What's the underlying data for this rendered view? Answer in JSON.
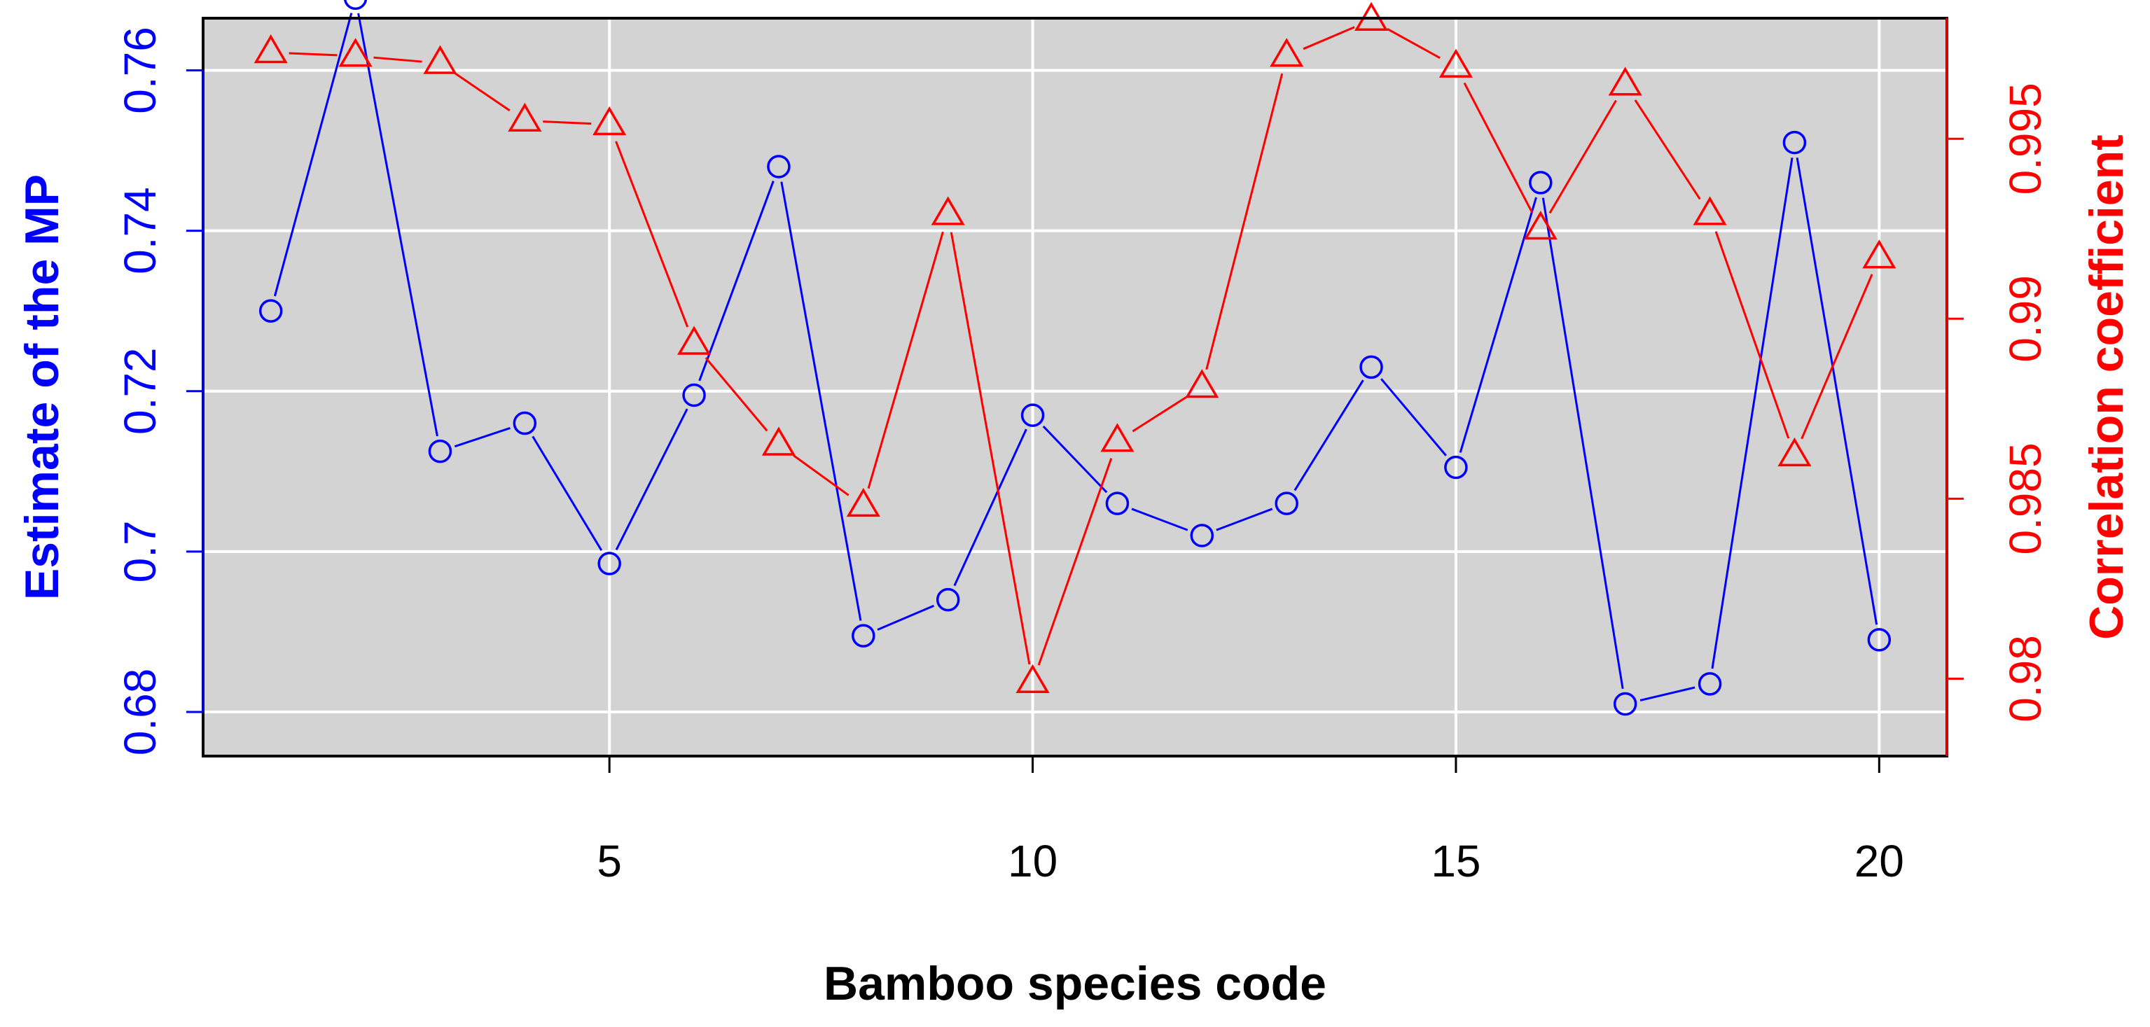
{
  "chart_data": {
    "type": "line",
    "title": "",
    "xlabel": "Bamboo species code",
    "ylabel": "Estimate of the MP",
    "y2label": "Correlation coefficient",
    "xlim": [
      0.2,
      20.8
    ],
    "ylim": [
      0.6745,
      0.7665
    ],
    "y2lim": [
      0.97785,
      0.99835
    ],
    "grid": true,
    "x_ticks": [
      5,
      10,
      15,
      20
    ],
    "y_ticks": [
      0.68,
      0.7,
      0.72,
      0.74,
      0.76
    ],
    "y_tick_labels": [
      "0.68",
      "0.7",
      "0.72",
      "0.74",
      "0.76"
    ],
    "y2_ticks": [
      0.98,
      0.985,
      0.99,
      0.995
    ],
    "y2_tick_labels": [
      "0.98",
      "0.985",
      "0.99",
      "0.995"
    ],
    "x": [
      1,
      2,
      3,
      4,
      5,
      6,
      7,
      8,
      9,
      10,
      11,
      12,
      13,
      14,
      15,
      16,
      17,
      18,
      19,
      20
    ],
    "series": [
      {
        "name": "Estimate of the MP",
        "axis": "left",
        "marker": "circle",
        "color": "#0000ff",
        "values": [
          0.73,
          0.769,
          0.7125,
          0.716,
          0.6985,
          0.7195,
          0.748,
          0.6895,
          0.694,
          0.717,
          0.706,
          0.702,
          0.706,
          0.723,
          0.7105,
          0.746,
          0.681,
          0.6835,
          0.751,
          0.689
        ]
      },
      {
        "name": "Correlation coefficient",
        "axis": "right",
        "marker": "triangle",
        "color": "#ff0000",
        "values": [
          0.9974,
          0.9973,
          0.9971,
          0.9955,
          0.9954,
          0.9893,
          0.9865,
          0.9848,
          0.9929,
          0.9799,
          0.9866,
          0.9881,
          0.9973,
          0.9983,
          0.997,
          0.9925,
          0.9965,
          0.9929,
          0.9862,
          0.9917
        ]
      }
    ],
    "colors": {
      "plot_background": "#d3d3d3",
      "grid": "#ffffff",
      "left_axis": "#0000ff",
      "right_axis": "#ff0000",
      "x_axis": "#000000"
    }
  }
}
